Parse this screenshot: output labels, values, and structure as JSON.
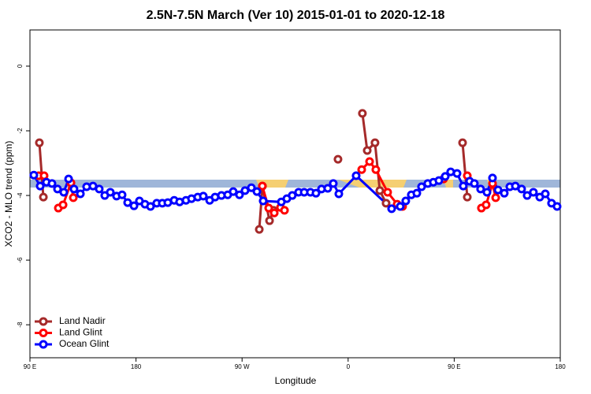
{
  "chart_data": {
    "type": "line",
    "title": "2.5N-7.5N March (Ver 10)   2015-01-01 to 2020-12-18",
    "x_label": "Longitude",
    "y_label": "XCO2 - MLO trend (ppm)",
    "xlim": [
      90,
      540
    ],
    "ylim": [
      -9.02,
      1.12
    ],
    "xticks": [
      {
        "value": 90,
        "label": "90 E"
      },
      180,
      {
        "value": 270,
        "label": "90 W"
      },
      {
        "value": 360,
        "label": "0"
      },
      {
        "value": 450,
        "label": "90 E"
      },
      {
        "value": 540,
        "label": "180"
      }
    ],
    "yticks": [
      0,
      -2,
      -4,
      -6,
      -8
    ],
    "legend": "bottom-left",
    "series": [
      {
        "name": "Land Nadir",
        "color": "#a52a2a",
        "x": [
          98.0,
          101.4,
          190,
          284.6,
          287.3,
          293.3,
          296.6,
          320,
          351.4,
          360,
          372.1,
          376.2,
          382.8,
          386.9,
          392.2,
          420,
          457.1,
          461.1
        ],
        "values": [
          -2.37,
          -4.05,
          null,
          -5.05,
          -3.71,
          -4.78,
          -4.46,
          null,
          -2.88,
          null,
          -1.46,
          -2.61,
          -2.37,
          -3.85,
          -4.24,
          null,
          -2.37,
          -4.05
        ]
      },
      {
        "name": "Land Glint",
        "color": "#ff0000",
        "x": [
          97.4,
          102.0,
          108,
          114.1,
          118.1,
          124.8,
          126.8,
          200,
          287.2,
          292.6,
          297.3,
          302.6,
          306.0,
          340,
          371.5,
          378.2,
          383.5,
          393.5,
          401.6,
          406.2,
          420,
          441.0,
          450,
          461.1,
          470,
          473.1,
          477.1,
          482.5,
          485.2
        ],
        "values": [
          -3.39,
          -3.39,
          null,
          -4.39,
          -4.29,
          -3.61,
          -4.07,
          null,
          -3.71,
          -4.39,
          -4.54,
          -4.37,
          -4.46,
          null,
          -3.2,
          -2.95,
          -3.2,
          -3.9,
          -4.27,
          -4.34,
          null,
          -3.49,
          null,
          -3.39,
          null,
          -4.39,
          -4.29,
          -3.63,
          -4.07
        ]
      },
      {
        "name": "Ocean Glint",
        "color": "#0000ff",
        "x": [
          93.3,
          98.7,
          104.0,
          108.7,
          113.4,
          118.7,
          122.8,
          127.4,
          132.8,
          138.1,
          143.5,
          148.8,
          153.5,
          158.2,
          163.5,
          168.2,
          172.9,
          178.3,
          182.9,
          187.6,
          192.3,
          197.6,
          202.3,
          207.0,
          212.4,
          217.0,
          222.4,
          227.1,
          232.4,
          237.1,
          242.5,
          247.1,
          252.5,
          257.8,
          262.5,
          267.8,
          272.5,
          277.9,
          282.6,
          287.9,
          303.3,
          308.0,
          312.6,
          318.0,
          322.7,
          328.0,
          332.7,
          337.4,
          342.7,
          347.4,
          352.1,
          366.8,
          396.9,
          404.2,
          408.9,
          413.6,
          418.3,
          422.3,
          427.6,
          432.3,
          437.0,
          442.4,
          447.0,
          452.4,
          457.7,
          463.1,
          467.1,
          472.4,
          477.8,
          482.5,
          487.2,
          492.5,
          497.2,
          501.9,
          507.2,
          511.9,
          517.2,
          522.6,
          527.3,
          532.6,
          537.3
        ],
        "values": [
          -3.37,
          -3.71,
          -3.59,
          -3.63,
          -3.8,
          -3.9,
          -3.49,
          -3.8,
          -3.95,
          -3.73,
          -3.71,
          -3.8,
          -4.0,
          -3.9,
          -4.02,
          -3.98,
          -4.22,
          -4.32,
          -4.17,
          -4.27,
          -4.34,
          -4.24,
          -4.24,
          -4.22,
          -4.15,
          -4.2,
          -4.15,
          -4.1,
          -4.05,
          -4.02,
          -4.15,
          -4.05,
          -4.0,
          -3.98,
          -3.88,
          -3.98,
          -3.85,
          -3.76,
          -3.88,
          -4.17,
          -4.2,
          -4.1,
          -4.0,
          -3.9,
          -3.9,
          -3.9,
          -3.93,
          -3.8,
          -3.78,
          -3.63,
          -3.95,
          -3.39,
          -4.41,
          -4.34,
          -4.17,
          -3.98,
          -3.93,
          -3.73,
          -3.63,
          -3.59,
          -3.54,
          -3.41,
          -3.27,
          -3.32,
          -3.71,
          -3.56,
          -3.63,
          -3.8,
          -3.9,
          -3.46,
          -3.83,
          -3.93,
          -3.73,
          -3.71,
          -3.8,
          -4.0,
          -3.9,
          -4.05,
          -3.95,
          -4.24,
          -4.34
        ]
      }
    ]
  }
}
